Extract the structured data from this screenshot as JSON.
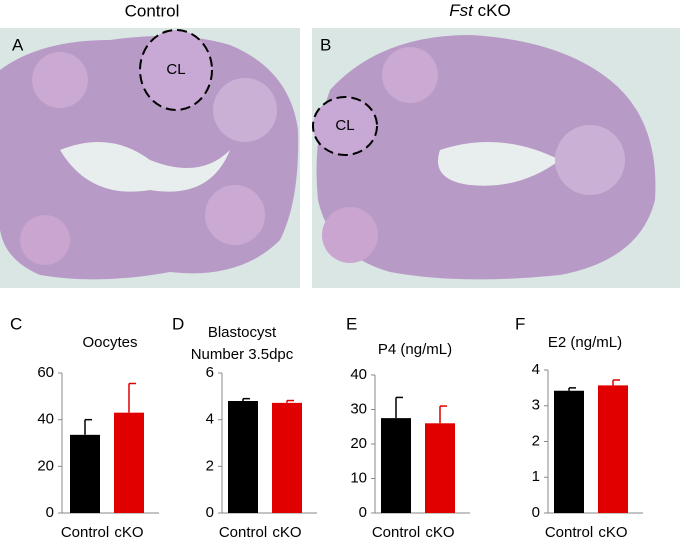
{
  "images": [
    {
      "heading": "Control",
      "label": "A",
      "annotation": "CL"
    },
    {
      "heading_italic": "Fst",
      "heading": "cKO",
      "label": "B",
      "annotation": "CL"
    }
  ],
  "chart_data": [
    {
      "type": "bar",
      "panel_label": "C",
      "title": [
        "Oocytes"
      ],
      "categories": [
        "Control",
        "cKO"
      ],
      "values": [
        33.5,
        43
      ],
      "errors": [
        6.5,
        12.5
      ],
      "colors": [
        "#000000",
        "#e00000"
      ],
      "ylim": [
        0,
        60
      ],
      "yticks": [
        0,
        20,
        40,
        60
      ]
    },
    {
      "type": "bar",
      "panel_label": "D",
      "title": [
        "Blastocyst",
        "Number 3.5dpc"
      ],
      "categories": [
        "Control",
        "cKO"
      ],
      "values": [
        4.8,
        4.72
      ],
      "errors": [
        0.1,
        0.1
      ],
      "colors": [
        "#000000",
        "#e00000"
      ],
      "ylim": [
        0,
        6
      ],
      "yticks": [
        0,
        2,
        4,
        6
      ]
    },
    {
      "type": "bar",
      "panel_label": "E",
      "title": [
        "P4 (ng/mL)"
      ],
      "categories": [
        "Control",
        "cKO"
      ],
      "values": [
        27.5,
        26
      ],
      "errors": [
        6,
        5
      ],
      "colors": [
        "#000000",
        "#e00000"
      ],
      "ylim": [
        0,
        40
      ],
      "yticks": [
        0,
        10,
        20,
        30,
        40
      ]
    },
    {
      "type": "bar",
      "panel_label": "F",
      "title": [
        "E2 (ng/mL)"
      ],
      "categories": [
        "Control",
        "cKO"
      ],
      "values": [
        3.42,
        3.57
      ],
      "errors": [
        0.08,
        0.15
      ],
      "colors": [
        "#000000",
        "#e00000"
      ],
      "ylim": [
        0,
        4
      ],
      "yticks": [
        0,
        1,
        2,
        3,
        4
      ]
    }
  ]
}
